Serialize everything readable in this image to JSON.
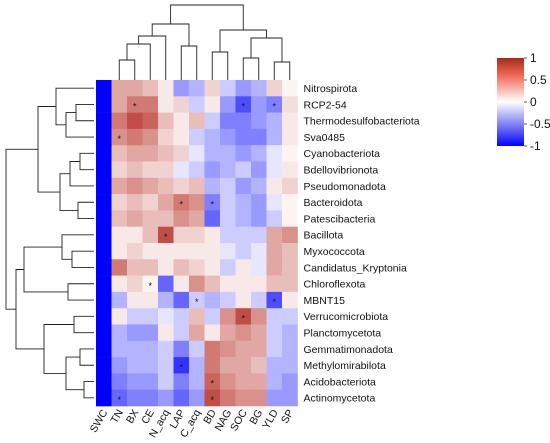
{
  "chart_data": {
    "type": "heatmap",
    "title": "",
    "xlabel": "",
    "ylabel": "",
    "columns": [
      "SWC",
      "TN",
      "BX",
      "CE",
      "N_acq",
      "LAP",
      "C_acq",
      "BD",
      "NAG",
      "SOC",
      "BG",
      "YLD",
      "SP"
    ],
    "rows": [
      "Nitrospirota",
      "RCP2-54",
      "Thermodesulfobacteriota",
      "Sva0485",
      "Cyanobacteriota",
      "Bdellovibrionota",
      "Pseudomonadota",
      "Bacteroidota",
      "Patescibacteria",
      "Bacillota",
      "Myxococcota",
      "Candidatus_Kryptonia",
      "Chloroflexota",
      "MBNT15",
      "Verrucomicrobiota",
      "Planctomycetota",
      "Gemmatimonadota",
      "Methylomirabilota",
      "Acidobacteriota",
      "Actinomycetota"
    ],
    "values": [
      [
        -1,
        0.4,
        0.4,
        0.3,
        0.1,
        -0.4,
        -0.3,
        0.2,
        -0.2,
        -0.4,
        -0.3,
        0.2,
        0.05
      ],
      [
        -1,
        0.4,
        0.6,
        0.6,
        0.1,
        0.2,
        -0.2,
        0.1,
        -0.4,
        -0.7,
        -0.4,
        -0.5,
        0.15
      ],
      [
        -1,
        0.6,
        0.8,
        0.7,
        0.3,
        0.1,
        0.3,
        -0.2,
        -0.5,
        -0.5,
        -0.4,
        -0.3,
        0.1
      ],
      [
        -1,
        0.5,
        0.6,
        0.5,
        0.2,
        0.1,
        -0.2,
        -0.3,
        -0.4,
        -0.5,
        -0.5,
        -0.3,
        0.1
      ],
      [
        -1,
        0.3,
        0.4,
        0.4,
        0.3,
        0.2,
        -0.1,
        -0.3,
        -0.3,
        -0.4,
        -0.3,
        -0.1,
        0.05
      ],
      [
        -1,
        0.2,
        0.3,
        0.2,
        0.2,
        -0.1,
        -0.2,
        -0.4,
        -0.3,
        -0.2,
        -0.4,
        -0.1,
        0.1
      ],
      [
        -1,
        0.4,
        0.5,
        0.4,
        0.3,
        0.2,
        0.3,
        -0.3,
        -0.2,
        -0.4,
        -0.3,
        0.1,
        0.2
      ],
      [
        -1,
        0.2,
        0.3,
        0.2,
        0.4,
        0.6,
        0.5,
        -0.5,
        -0.2,
        -0.3,
        -0.4,
        -0.1,
        0.05
      ],
      [
        -1,
        0.3,
        0.4,
        0.3,
        0.3,
        0.5,
        0.4,
        -0.6,
        -0.2,
        -0.3,
        -0.4,
        -0.2,
        0.05
      ],
      [
        -1,
        0.1,
        0.1,
        0.3,
        0.8,
        0.2,
        0.2,
        0.1,
        -0.2,
        -0.2,
        -0.2,
        0.4,
        0.5
      ],
      [
        -1,
        0.1,
        0.2,
        0.1,
        0.1,
        0.1,
        0.1,
        0.1,
        -0.1,
        -0.2,
        -0.1,
        0.4,
        0.3
      ],
      [
        -1,
        0.6,
        0.3,
        0.3,
        0.1,
        0.3,
        0.2,
        0.1,
        -0.2,
        0.1,
        -0.1,
        0.4,
        0.3
      ],
      [
        -1,
        0.1,
        0.2,
        0.05,
        -0.6,
        0.1,
        0.5,
        0.3,
        0.1,
        0.1,
        0.1,
        0.3,
        0.3
      ],
      [
        -1,
        -0.3,
        0.1,
        0.1,
        -0.3,
        -0.6,
        -0.2,
        -0.3,
        -0.2,
        0.1,
        -0.2,
        -0.7,
        0.1
      ],
      [
        -1,
        0.1,
        -0.2,
        -0.2,
        -0.1,
        -0.2,
        0.3,
        -0.2,
        0.5,
        0.8,
        0.5,
        -0.2,
        -0.2
      ],
      [
        -1,
        -0.3,
        -0.4,
        -0.4,
        0.1,
        -0.2,
        0.4,
        0.1,
        0.4,
        0.5,
        0.4,
        -0.2,
        -0.3
      ],
      [
        -1,
        -0.3,
        -0.3,
        -0.3,
        -0.2,
        -0.5,
        -0.2,
        0.6,
        0.5,
        0.4,
        0.4,
        -0.2,
        -0.3
      ],
      [
        -1,
        -0.4,
        -0.3,
        -0.3,
        -0.2,
        -0.8,
        -0.3,
        0.6,
        0.4,
        0.4,
        0.3,
        -0.3,
        -0.3
      ],
      [
        -1,
        -0.5,
        -0.4,
        -0.4,
        -0.2,
        -0.5,
        -0.3,
        0.7,
        0.5,
        0.4,
        0.4,
        -0.3,
        -0.4
      ],
      [
        -1,
        -0.6,
        -0.5,
        -0.5,
        -0.4,
        -0.6,
        -0.4,
        0.8,
        0.6,
        0.5,
        0.5,
        -0.4,
        -0.4
      ]
    ],
    "significance": [
      {
        "row": "RCP2-54",
        "col": "BX",
        "label": "*"
      },
      {
        "row": "RCP2-54",
        "col": "SOC",
        "label": "*"
      },
      {
        "row": "RCP2-54",
        "col": "YLD",
        "label": "*"
      },
      {
        "row": "Sva0485",
        "col": "TN",
        "label": "*"
      },
      {
        "row": "Bacteroidota",
        "col": "LAP",
        "label": "*"
      },
      {
        "row": "Bacteroidota",
        "col": "BD",
        "label": "*"
      },
      {
        "row": "Bacillota",
        "col": "N_acq",
        "label": "*"
      },
      {
        "row": "Chloroflexota",
        "col": "CE",
        "label": "*"
      },
      {
        "row": "MBNT15",
        "col": "C_acq",
        "label": "*"
      },
      {
        "row": "MBNT15",
        "col": "YLD",
        "label": "*"
      },
      {
        "row": "Verrucomicrobiota",
        "col": "SOC",
        "label": "*"
      },
      {
        "row": "Methylomirabilota",
        "col": "LAP",
        "label": "*"
      },
      {
        "row": "Acidobacteriota",
        "col": "BD",
        "label": "*"
      },
      {
        "row": "Actinomycetota",
        "col": "TN",
        "label": "*"
      },
      {
        "row": "Actinomycetota",
        "col": "BD",
        "label": "*"
      }
    ],
    "colorbar": {
      "range": [
        -1,
        1
      ],
      "ticks": [
        1,
        0.5,
        0,
        -0.5,
        -1
      ],
      "tick_labels": [
        "1",
        "0.5",
        "0",
        "-0.5",
        "-1"
      ],
      "colors": {
        "low": "#0000ff",
        "mid": "#ffffff",
        "high": "#b2182b"
      }
    },
    "legend": "right",
    "grid": false
  }
}
